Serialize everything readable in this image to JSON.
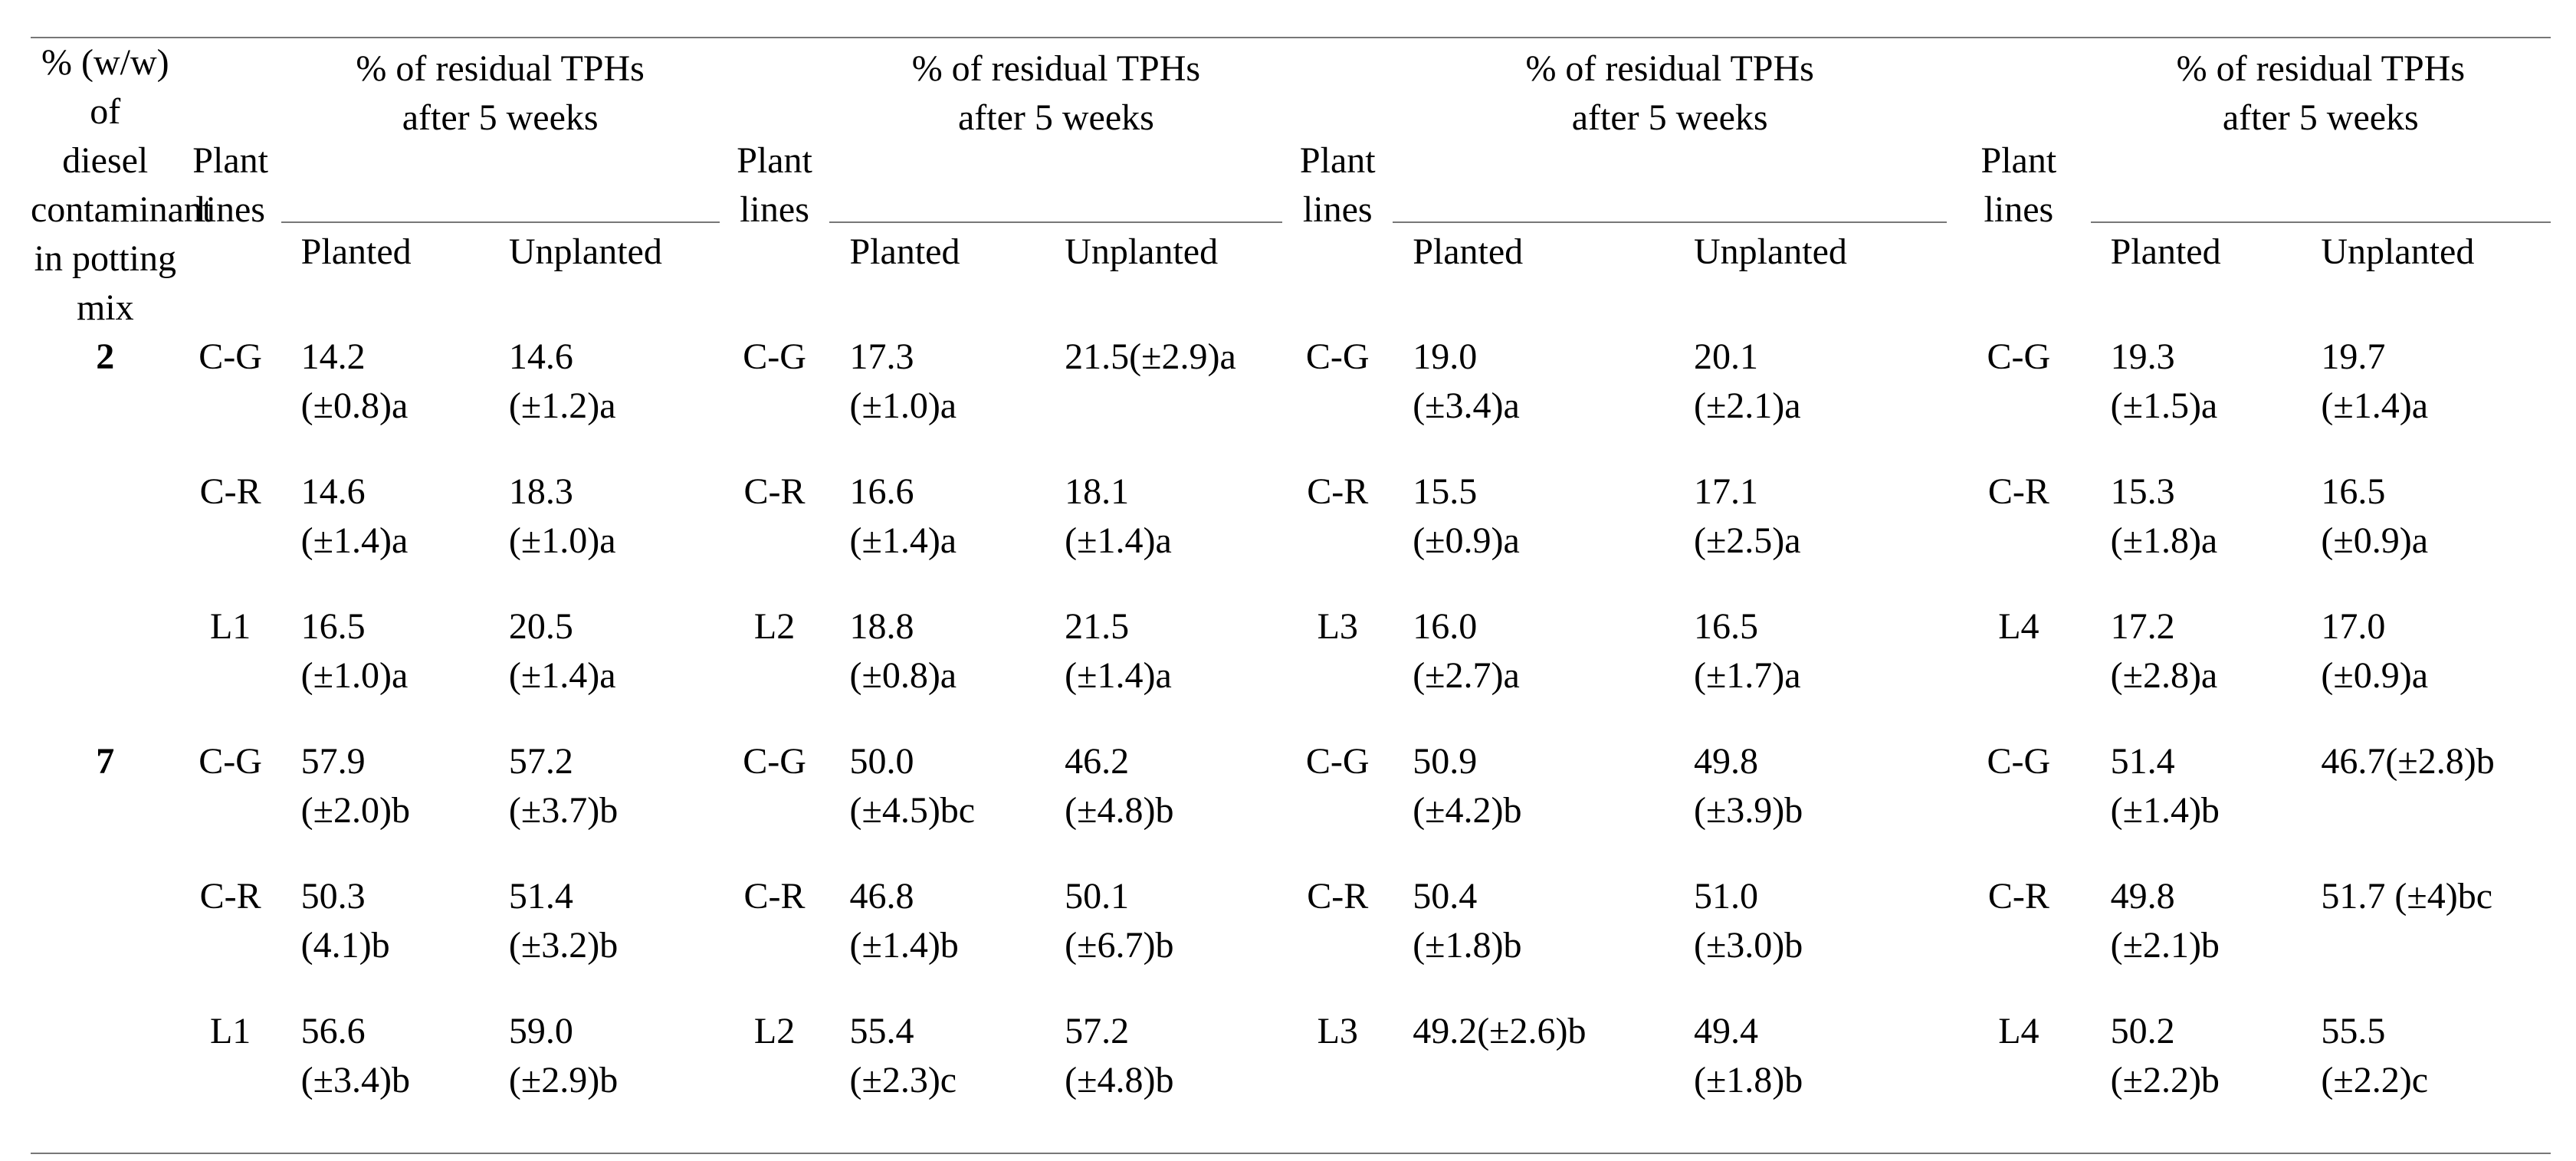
{
  "table": {
    "header": {
      "diesel": [
        "% (w/w) of",
        "diesel",
        "contaminant",
        "in potting",
        "mix"
      ],
      "plant_lines": [
        "Plant",
        "lines"
      ],
      "group_title": [
        "% of residual TPHs",
        "after 5 weeks"
      ],
      "planted": "Planted",
      "unplanted": "Unplanted"
    },
    "rows": [
      {
        "conc": "2",
        "groups": [
          {
            "line": "C-G",
            "p": [
              "14.2",
              "(±0.8)a"
            ],
            "u": [
              "14.6",
              "(±1.2)a"
            ]
          },
          {
            "line": "C-G",
            "p": [
              "17.3",
              "(±1.0)a"
            ],
            "u": [
              "21.5(±2.9)a",
              ""
            ]
          },
          {
            "line": "C-G",
            "p": [
              "19.0",
              "(±3.4)a"
            ],
            "u": [
              "20.1",
              "(±2.1)a"
            ]
          },
          {
            "line": "C-G",
            "p": [
              "19.3",
              "(±1.5)a"
            ],
            "u": [
              "19.7",
              "(±1.4)a"
            ]
          }
        ]
      },
      {
        "conc": "",
        "groups": [
          {
            "line": "C-R",
            "p": [
              "14.6",
              "(±1.4)a"
            ],
            "u": [
              "18.3",
              "(±1.0)a"
            ]
          },
          {
            "line": "C-R",
            "p": [
              "16.6",
              "(±1.4)a"
            ],
            "u": [
              "18.1",
              "(±1.4)a"
            ]
          },
          {
            "line": "C-R",
            "p": [
              "15.5",
              "(±0.9)a"
            ],
            "u": [
              "17.1",
              "(±2.5)a"
            ]
          },
          {
            "line": "C-R",
            "p": [
              "15.3",
              "(±1.8)a"
            ],
            "u": [
              "16.5",
              "(±0.9)a"
            ]
          }
        ]
      },
      {
        "conc": "",
        "groups": [
          {
            "line": "L1",
            "p": [
              "16.5",
              "(±1.0)a"
            ],
            "u": [
              "20.5",
              "(±1.4)a"
            ]
          },
          {
            "line": "L2",
            "p": [
              "18.8",
              "(±0.8)a"
            ],
            "u": [
              "21.5",
              "(±1.4)a"
            ]
          },
          {
            "line": "L3",
            "p": [
              "16.0",
              "(±2.7)a"
            ],
            "u": [
              "16.5",
              "(±1.7)a"
            ]
          },
          {
            "line": "L4",
            "p": [
              "17.2",
              "(±2.8)a"
            ],
            "u": [
              "17.0",
              "(±0.9)a"
            ]
          }
        ]
      },
      {
        "conc": "7",
        "groups": [
          {
            "line": "C-G",
            "p": [
              "57.9",
              "(±2.0)b"
            ],
            "u": [
              "57.2",
              "(±3.7)b"
            ]
          },
          {
            "line": "C-G",
            "p": [
              "50.0",
              "(±4.5)bc"
            ],
            "u": [
              "46.2",
              "(±4.8)b"
            ]
          },
          {
            "line": "C-G",
            "p": [
              "50.9",
              "(±4.2)b"
            ],
            "u": [
              "49.8",
              "(±3.9)b"
            ]
          },
          {
            "line": "C-G",
            "p": [
              "51.4",
              "(±1.4)b"
            ],
            "u": [
              "46.7(±2.8)b",
              ""
            ]
          }
        ]
      },
      {
        "conc": "",
        "groups": [
          {
            "line": "C-R",
            "p": [
              "50.3",
              "(4.1)b"
            ],
            "u": [
              "51.4",
              "(±3.2)b"
            ]
          },
          {
            "line": "C-R",
            "p": [
              "46.8",
              "(±1.4)b"
            ],
            "u": [
              "50.1",
              "(±6.7)b"
            ]
          },
          {
            "line": "C-R",
            "p": [
              "50.4",
              "(±1.8)b"
            ],
            "u": [
              "51.0",
              "(±3.0)b"
            ]
          },
          {
            "line": "C-R",
            "p": [
              "49.8",
              "(±2.1)b"
            ],
            "u": [
              "51.7 (±4)bc",
              ""
            ]
          }
        ]
      },
      {
        "conc": "",
        "groups": [
          {
            "line": "L1",
            "p": [
              "56.6",
              "(±3.4)b"
            ],
            "u": [
              "59.0",
              "(±2.9)b"
            ]
          },
          {
            "line": "L2",
            "p": [
              "55.4",
              "(±2.3)c"
            ],
            "u": [
              "57.2",
              "(±4.8)b"
            ]
          },
          {
            "line": "L3",
            "p": [
              "49.2(±2.6)b",
              ""
            ],
            "u": [
              "49.4",
              "(±1.8)b"
            ]
          },
          {
            "line": "L4",
            "p": [
              "50.2",
              "(±2.2)b"
            ],
            "u": [
              "55.5",
              "(±2.2)c"
            ]
          }
        ]
      }
    ]
  }
}
